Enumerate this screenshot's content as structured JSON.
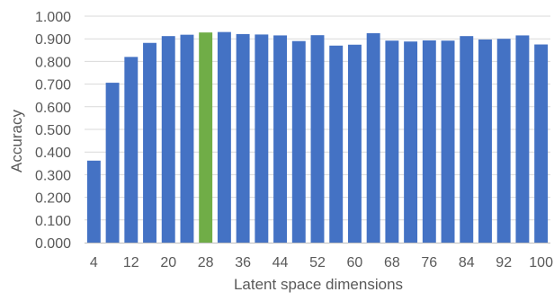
{
  "chart_data": {
    "type": "bar",
    "title": "",
    "xlabel": "Latent space dimensions",
    "ylabel": "Accuracy",
    "ylim": [
      0,
      1
    ],
    "yticks": [
      "0.000",
      "0.100",
      "0.200",
      "0.300",
      "0.400",
      "0.500",
      "0.600",
      "0.700",
      "0.800",
      "0.900",
      "1.000"
    ],
    "ytick_values": [
      0,
      0.1,
      0.2,
      0.3,
      0.4,
      0.5,
      0.6,
      0.7,
      0.8,
      0.9,
      1.0
    ],
    "grid": "horizontal",
    "categories": [
      "4",
      "8",
      "12",
      "16",
      "20",
      "24",
      "28",
      "32",
      "36",
      "40",
      "44",
      "48",
      "52",
      "56",
      "60",
      "64",
      "68",
      "72",
      "76",
      "80",
      "84",
      "88",
      "92",
      "96",
      "100"
    ],
    "xtick_labels": [
      "4",
      "",
      "12",
      "",
      "20",
      "",
      "28",
      "",
      "36",
      "",
      "44",
      "",
      "52",
      "",
      "60",
      "",
      "68",
      "",
      "76",
      "",
      "84",
      "",
      "92",
      "",
      "100"
    ],
    "values": [
      0.362,
      0.706,
      0.82,
      0.882,
      0.912,
      0.918,
      0.928,
      0.93,
      0.921,
      0.919,
      0.915,
      0.89,
      0.916,
      0.87,
      0.874,
      0.925,
      0.892,
      0.888,
      0.893,
      0.892,
      0.912,
      0.897,
      0.9,
      0.915,
      0.875
    ],
    "highlight_index": 6,
    "bar_color": "#4472C4",
    "highlight_color": "#70AD47",
    "grid_color": "#D9D9D9",
    "axis_color": "#BFBFBF",
    "text_color": "#595959"
  }
}
